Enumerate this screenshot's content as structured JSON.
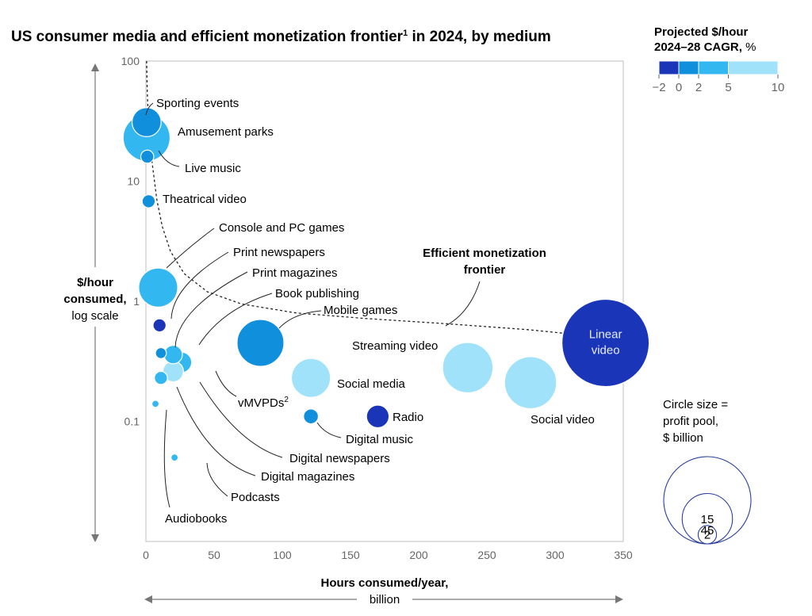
{
  "chart_data": {
    "type": "scatter",
    "title": "US consumer media and efficient monetization frontier",
    "title_sup": "1",
    "title_suffix": " in 2024, by medium",
    "xlabel_line1": "Hours consumed/year,",
    "xlabel_line2": "billion",
    "ylabel_line1": "$/hour",
    "ylabel_line2": "consumed,",
    "ylabel_line3": "log scale",
    "xlim": [
      0,
      350
    ],
    "ylim": [
      0.01,
      100
    ],
    "yscale": "log",
    "x_ticks": [
      0,
      50,
      100,
      150,
      200,
      250,
      300,
      350
    ],
    "y_ticks": [
      {
        "value": 100,
        "label": "100"
      },
      {
        "value": 10,
        "label": "10"
      },
      {
        "value": 1,
        "label": "1"
      },
      {
        "value": 0.1,
        "label": "0.1"
      }
    ],
    "frontier_label_line1": "Efficient monetization",
    "frontier_label_line2": "frontier",
    "frontier": [
      [
        0.5,
        100
      ],
      [
        1,
        55
      ],
      [
        2,
        30
      ],
      [
        3,
        20
      ],
      [
        5,
        13
      ],
      [
        8,
        7
      ],
      [
        12,
        4.2
      ],
      [
        18,
        2.6
      ],
      [
        28,
        1.7
      ],
      [
        45,
        1.2
      ],
      [
        70,
        0.95
      ],
      [
        110,
        0.8
      ],
      [
        160,
        0.72
      ],
      [
        220,
        0.65
      ],
      [
        280,
        0.58
      ],
      [
        337,
        0.5
      ]
    ],
    "points": [
      {
        "label": "Sporting events",
        "x": 0.5,
        "y": 31,
        "profit_pool": 5,
        "cagr_bin": 1
      },
      {
        "label": "Amusement parks",
        "x": 0.5,
        "y": 23,
        "profit_pool": 13,
        "cagr_bin": 2
      },
      {
        "label": "Live music",
        "x": 1,
        "y": 16,
        "profit_pool": 1,
        "cagr_bin": 1
      },
      {
        "label": "Theatrical video",
        "x": 2,
        "y": 6.8,
        "profit_pool": 1,
        "cagr_bin": 1
      },
      {
        "label": "Console and PC games",
        "x": 9,
        "y": 1.3,
        "profit_pool": 9,
        "cagr_bin": 2
      },
      {
        "label": "Print newspapers",
        "x": 10,
        "y": 0.63,
        "profit_pool": 1,
        "cagr_bin": 0
      },
      {
        "label": "Print magazines",
        "x": 11,
        "y": 0.37,
        "profit_pool": 0.7,
        "cagr_bin": 1
      },
      {
        "label": "Book publishing",
        "x": 20,
        "y": 0.36,
        "profit_pool": 2,
        "cagr_bin": 2
      },
      {
        "label": "Mobile games",
        "x": 84,
        "y": 0.45,
        "profit_pool": 13,
        "cagr_bin": 1
      },
      {
        "label": "vMVPDs",
        "label_sup": "2",
        "x": 26,
        "y": 0.31,
        "profit_pool": 2.5,
        "cagr_bin": 2
      },
      {
        "label": "Digital newspapers",
        "x": 20,
        "y": 0.26,
        "profit_pool": 2.5,
        "cagr_bin": 3
      },
      {
        "label": "Digital magazines",
        "x": 11,
        "y": 0.23,
        "profit_pool": 1,
        "cagr_bin": 2
      },
      {
        "label": "Audiobooks",
        "x": 7,
        "y": 0.14,
        "profit_pool": 0.3,
        "cagr_bin": 2
      },
      {
        "label": "Podcasts",
        "x": 21,
        "y": 0.05,
        "profit_pool": 0.3,
        "cagr_bin": 2
      },
      {
        "label": "Social media",
        "x": 121,
        "y": 0.23,
        "profit_pool": 9,
        "cagr_bin": 3
      },
      {
        "label": "Digital music",
        "x": 121,
        "y": 0.11,
        "profit_pool": 1.3,
        "cagr_bin": 1
      },
      {
        "label": "Radio",
        "x": 170,
        "y": 0.11,
        "profit_pool": 3,
        "cagr_bin": 0
      },
      {
        "label": "Streaming video",
        "x": 236,
        "y": 0.28,
        "profit_pool": 15,
        "cagr_bin": 3
      },
      {
        "label": "Social video",
        "x": 282,
        "y": 0.21,
        "profit_pool": 16,
        "cagr_bin": 3
      },
      {
        "label": "Linear video",
        "x": 337,
        "y": 0.45,
        "profit_pool": 45,
        "cagr_bin": 0,
        "label_inside": true
      }
    ],
    "color_legend": {
      "title_line1": "Projected $/hour",
      "title_line2": "2024–28 CAGR,",
      "title_unit": " %",
      "bins": [
        {
          "from": -2,
          "to": 0,
          "color": "#1a35b8"
        },
        {
          "from": 0,
          "to": 2,
          "color": "#0f8fdc"
        },
        {
          "from": 2,
          "to": 5,
          "color": "#33b7f0"
        },
        {
          "from": 5,
          "to": 10,
          "color": "#9fe2fa"
        }
      ],
      "tick_labels": [
        "−2",
        "0",
        "2",
        "5",
        "10"
      ]
    },
    "size_legend": {
      "title_line1": "Circle size =",
      "title_line2": "profit pool,",
      "title_line3": "$ billion",
      "values": [
        2,
        15,
        45
      ]
    }
  }
}
